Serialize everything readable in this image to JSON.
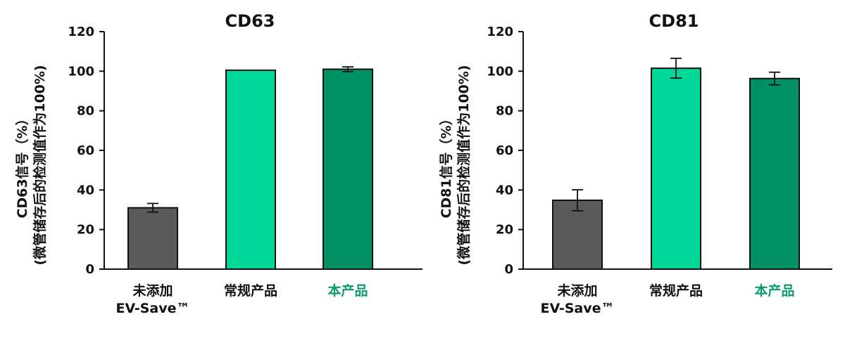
{
  "chart_data": [
    {
      "type": "bar",
      "title": "CD63",
      "ylabel_line1": "CD63信号（%）",
      "ylabel_line2": "(微管储存后的检测值作为100%)",
      "categories": [
        {
          "lines": [
            "未添加",
            "EV-Save™"
          ],
          "color": "#111111"
        },
        {
          "lines": [
            "常规产品"
          ],
          "color": "#111111"
        },
        {
          "lines": [
            "本产品"
          ],
          "color": "#0a9a6c"
        }
      ],
      "values": [
        31,
        100.5,
        101
      ],
      "errors": [
        2.2,
        0,
        1.2
      ],
      "bar_colors": [
        "#5a5a5a",
        "#00d89b",
        "#009066"
      ],
      "ylim": [
        0,
        120
      ],
      "yticks": [
        0,
        20,
        40,
        60,
        80,
        100,
        120
      ],
      "grid": false,
      "legend": "none"
    },
    {
      "type": "bar",
      "title": "CD81",
      "ylabel_line1": "CD81信号（%）",
      "ylabel_line2": "(微管储存后的检测值作为100%)",
      "categories": [
        {
          "lines": [
            "未添加",
            "EV-Save™"
          ],
          "color": "#111111"
        },
        {
          "lines": [
            "常规产品"
          ],
          "color": "#111111"
        },
        {
          "lines": [
            "本产品"
          ],
          "color": "#0a9a6c"
        }
      ],
      "values": [
        34.8,
        101.5,
        96.3
      ],
      "errors": [
        5.3,
        5,
        3.2
      ],
      "bar_colors": [
        "#5a5a5a",
        "#00d89b",
        "#009066"
      ],
      "ylim": [
        0,
        120
      ],
      "yticks": [
        0,
        20,
        40,
        60,
        80,
        100,
        120
      ],
      "grid": false,
      "legend": "none"
    }
  ]
}
